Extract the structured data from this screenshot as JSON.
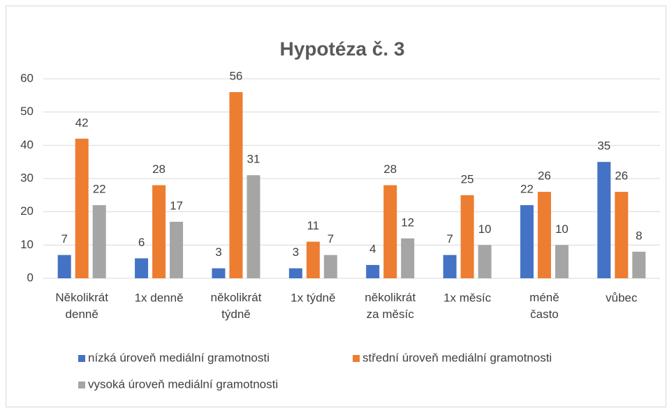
{
  "chart_data": {
    "type": "bar",
    "title": "Hypotéza č. 3",
    "categories": [
      "Několikrát\ndenně",
      "1x denně",
      "několikrát\ntýdně",
      "1x týdně",
      "několikrát\nza měsíc",
      "1x měsíc",
      "méně\nčasto",
      "vůbec"
    ],
    "series": [
      {
        "name": "nízká úroveň mediální gramotnosti",
        "color": "#4472c4",
        "values": [
          7,
          6,
          3,
          3,
          4,
          7,
          22,
          35
        ]
      },
      {
        "name": "střední úroveň mediální gramotnosti",
        "color": "#ed7d31",
        "values": [
          42,
          28,
          56,
          11,
          28,
          25,
          26,
          26
        ]
      },
      {
        "name": "vysoká úroveň mediální gramotnosti",
        "color": "#a5a5a5",
        "values": [
          22,
          17,
          31,
          7,
          12,
          10,
          10,
          8
        ]
      }
    ],
    "ylim": [
      0,
      60
    ],
    "yticks": [
      0,
      10,
      20,
      30,
      40,
      50,
      60
    ],
    "grid": true,
    "legend": "bottom"
  }
}
